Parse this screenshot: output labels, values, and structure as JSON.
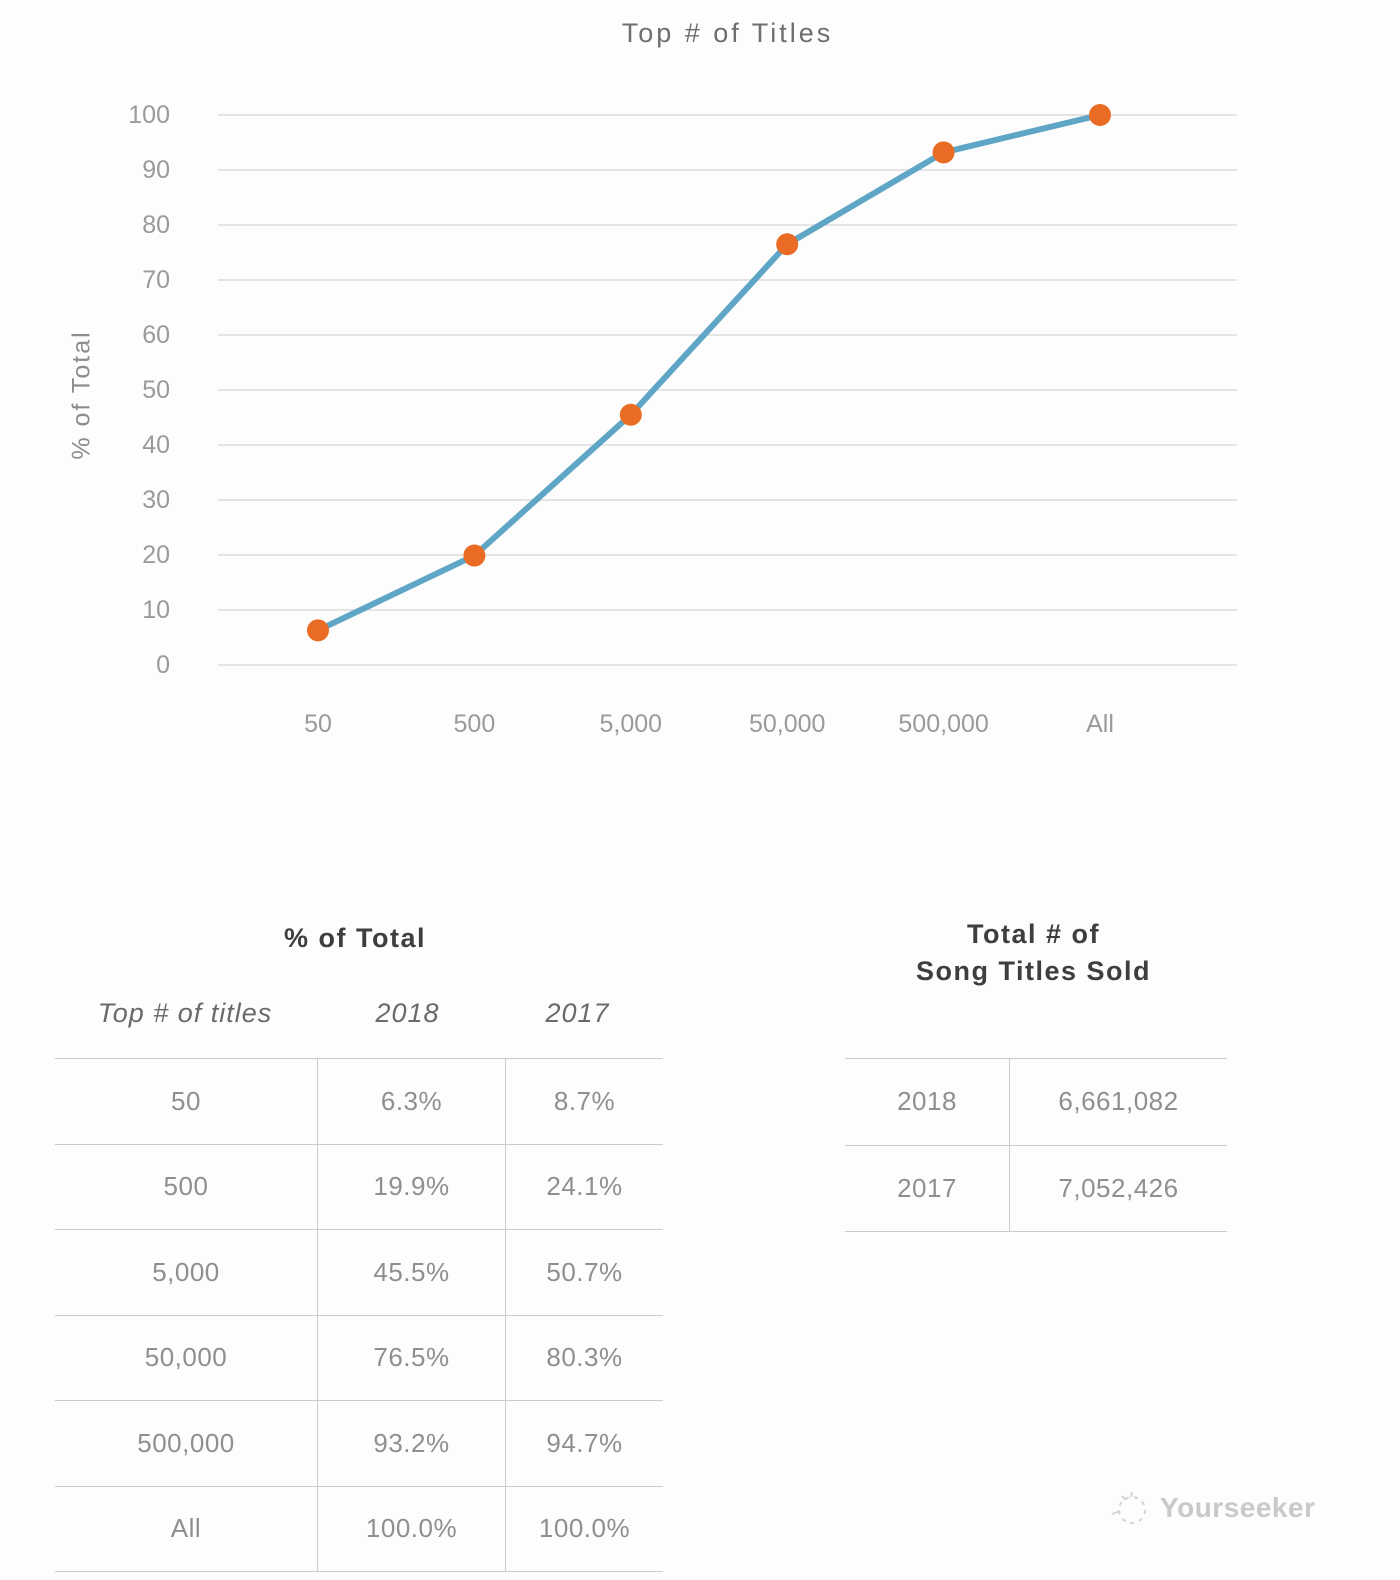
{
  "chart_data": {
    "type": "line",
    "title": "Top # of Titles",
    "xlabel": "",
    "ylabel": "% of Total",
    "categories": [
      "50",
      "500",
      "5,000",
      "50,000",
      "500,000",
      "All"
    ],
    "series": [
      {
        "name": "2018",
        "values": [
          6.3,
          19.9,
          45.5,
          76.5,
          93.2,
          100.0
        ]
      }
    ],
    "ylim": [
      0,
      100
    ],
    "ytick_step": 10,
    "grid": true,
    "legend": "none",
    "line_color": "#5fa6c6",
    "marker_color": "#ea6c24",
    "grid_color": "#dcdcdc"
  },
  "tables": {
    "percent": {
      "title": "% of Total",
      "columns": [
        "Top # of titles",
        "2018",
        "2017"
      ],
      "rows": [
        {
          "label": "50",
          "y2018": "6.3%",
          "y2017": "8.7%"
        },
        {
          "label": "500",
          "y2018": "19.9%",
          "y2017": "24.1%"
        },
        {
          "label": "5,000",
          "y2018": "45.5%",
          "y2017": "50.7%"
        },
        {
          "label": "50,000",
          "y2018": "76.5%",
          "y2017": "80.3%"
        },
        {
          "label": "500,000",
          "y2018": "93.2%",
          "y2017": "94.7%"
        },
        {
          "label": "All",
          "y2018": "100.0%",
          "y2017": "100.0%"
        }
      ]
    },
    "totals": {
      "title_line1": "Total # of",
      "title_line2": "Song Titles Sold",
      "rows": [
        {
          "year": "2018",
          "value": "6,661,082"
        },
        {
          "year": "2017",
          "value": "7,052,426"
        }
      ]
    }
  },
  "watermark": {
    "label": "Yourseeker"
  }
}
